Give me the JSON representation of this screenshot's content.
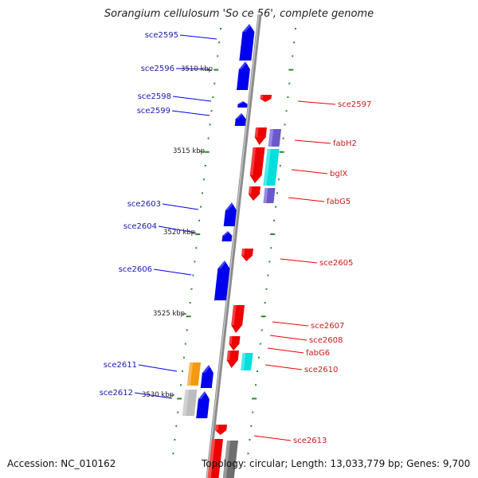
{
  "title": "Sorangium cellulosum 'So ce 56', complete genome",
  "accession": "Accession: NC_010162",
  "topology": "Topology: circular; Length: 13,033,779 bp; Genes: 9,700",
  "colors": {
    "axis": "#8c8c8c",
    "tick": "#2a8a2a",
    "left_gene": "#0000ee",
    "right_gene": "#ee0000",
    "left_label": "#1a1ab4",
    "right_label": "#cc1a1a",
    "cyan": "#00dede",
    "violet": "#6a58cc",
    "orange": "#f39a10",
    "light_gray": "#bdbdbd",
    "dark_gray": "#6e6e6e"
  },
  "scale_labels": [
    "3510 kbp",
    "3515 kbp",
    "3520 kbp",
    "3525 kbp",
    "3530 kbp"
  ],
  "left_genes": [
    "sce2595",
    "sce2596",
    "sce2598",
    "sce2599",
    "sce2603",
    "sce2604",
    "sce2606",
    "sce2611",
    "sce2612"
  ],
  "right_genes": [
    "sce2597",
    "fabH2",
    "bglX",
    "fabG5",
    "sce2605",
    "sce2607",
    "sce2608",
    "fabG6",
    "sce2610",
    "sce2613"
  ]
}
